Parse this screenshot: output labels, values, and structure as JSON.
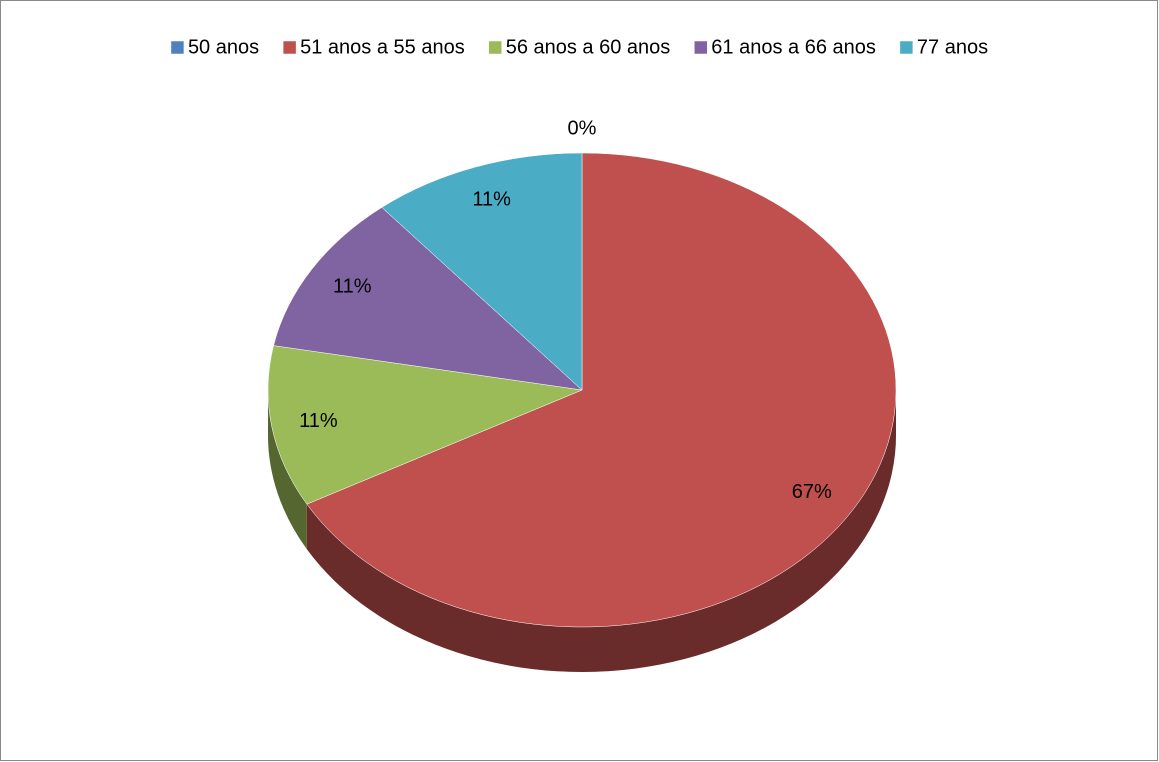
{
  "chart_data": {
    "type": "pie",
    "categories": [
      "50 anos",
      "51 anos a 55 anos",
      "56 anos a 60 anos",
      "61 anos a 66 anos",
      "77 anos"
    ],
    "values": [
      0,
      67,
      11,
      11,
      11
    ],
    "value_labels": [
      "0%",
      "67%",
      "11%",
      "11%",
      "11%"
    ],
    "colors": [
      "#4f81bd",
      "#c0504d",
      "#9bbb59",
      "#8064a2",
      "#4bacc6"
    ],
    "legend": "top"
  }
}
